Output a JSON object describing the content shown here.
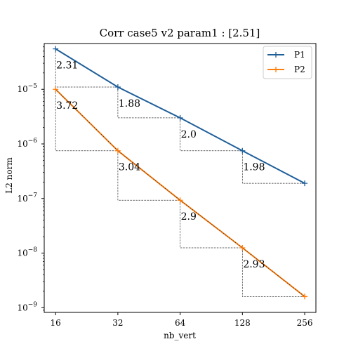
{
  "chart_data": {
    "type": "line",
    "title": "Corr case5 v2 param1 : [2.51]",
    "xlabel": "nb_vert",
    "ylabel": "L2 norm",
    "x_scale": "log2",
    "y_scale": "log10",
    "x_ticks": [
      16,
      32,
      64,
      128,
      256
    ],
    "x_tick_labels": [
      "16",
      "32",
      "64",
      "128",
      "256"
    ],
    "y_ticks": [
      1e-09,
      1e-08,
      1e-07,
      1e-06,
      1e-05
    ],
    "y_tick_labels": [
      {
        "base": "10",
        "exp": "−9"
      },
      {
        "base": "10",
        "exp": "−8"
      },
      {
        "base": "10",
        "exp": "−7"
      },
      {
        "base": "10",
        "exp": "−6"
      },
      {
        "base": "10",
        "exp": "−5"
      }
    ],
    "legend_position": "top-right",
    "grid": false,
    "series": [
      {
        "name": "P1",
        "color": "#1f5f99",
        "x": [
          16,
          32,
          64,
          128,
          256
        ],
        "y": [
          5.5e-05,
          1.1e-05,
          3e-06,
          7.5e-07,
          1.9e-07
        ],
        "annotations": [
          "2.31",
          "1.88",
          "2.0",
          "1.98"
        ]
      },
      {
        "name": "P2",
        "color": "#ff7f0e",
        "x": [
          16,
          32,
          64,
          128,
          256
        ],
        "y": [
          1e-05,
          7.5e-07,
          9.3e-08,
          1.25e-08,
          1.6e-09
        ],
        "annotations": [
          "3.72",
          "3.04",
          "2.9",
          "2.93"
        ]
      }
    ]
  }
}
